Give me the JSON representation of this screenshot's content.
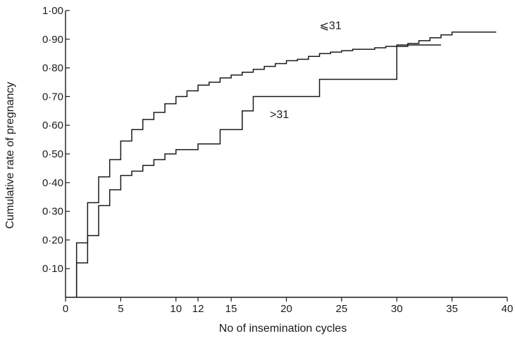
{
  "chart_data": {
    "type": "line",
    "xlabel": "No of insemination cycles",
    "ylabel": "Cumulative rate of pregnancy",
    "xlim": [
      0,
      40
    ],
    "ylim": [
      0,
      1.0
    ],
    "x_ticks": [
      0,
      5,
      10,
      12,
      15,
      20,
      25,
      30,
      35,
      40
    ],
    "x_tick_labels": [
      "0",
      "5",
      "10",
      "12",
      "15",
      "20",
      "25",
      "30",
      "35",
      "40"
    ],
    "y_ticks": [
      0.1,
      0.2,
      0.3,
      0.4,
      0.5,
      0.6,
      0.7,
      0.8,
      0.9,
      1.0
    ],
    "y_tick_labels": [
      "0·10",
      "0·20",
      "0·30",
      "0·40",
      "0·50",
      "0·60",
      "0·70",
      "0·80",
      "0·90",
      "1·00"
    ],
    "grid": false,
    "series": [
      {
        "name": "⩽31",
        "label_at": [
          23,
          0.935
        ],
        "x": [
          1,
          2,
          3,
          4,
          5,
          6,
          7,
          8,
          9,
          10,
          11,
          12,
          13,
          14,
          15,
          16,
          17,
          18,
          19,
          20,
          21,
          22,
          23,
          24,
          25,
          26,
          27,
          28,
          29,
          30,
          31,
          32,
          33,
          34,
          35,
          39
        ],
        "y": [
          0.19,
          0.33,
          0.42,
          0.48,
          0.545,
          0.585,
          0.62,
          0.645,
          0.675,
          0.7,
          0.72,
          0.74,
          0.75,
          0.765,
          0.775,
          0.785,
          0.795,
          0.805,
          0.815,
          0.825,
          0.83,
          0.84,
          0.85,
          0.855,
          0.86,
          0.865,
          0.865,
          0.87,
          0.875,
          0.88,
          0.885,
          0.895,
          0.905,
          0.915,
          0.925,
          0.925
        ]
      },
      {
        "name": ">31",
        "label_at": [
          18.5,
          0.625
        ],
        "x": [
          1,
          2,
          3,
          4,
          5,
          6,
          7,
          8,
          9,
          10,
          12,
          14,
          16,
          17,
          23,
          30,
          31,
          34
        ],
        "y": [
          0.12,
          0.215,
          0.32,
          0.375,
          0.425,
          0.44,
          0.46,
          0.48,
          0.5,
          0.515,
          0.535,
          0.585,
          0.65,
          0.7,
          0.76,
          0.875,
          0.88,
          0.88
        ]
      }
    ]
  }
}
